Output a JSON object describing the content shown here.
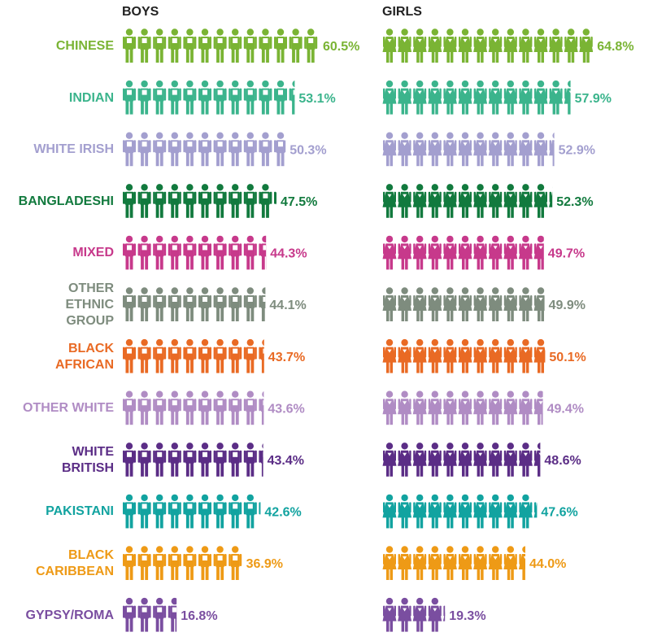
{
  "chart_data": {
    "type": "pictogram",
    "categories": [
      "CHINESE",
      "INDIAN",
      "WHITE IRISH",
      "BANGLADESHI",
      "MIXED",
      "OTHER\nETHNIC\nGROUP",
      "BLACK\nAFRICAN",
      "OTHER WHITE",
      "WHITE\nBRITISH",
      "PAKISTANI",
      "BLACK\nCARIBBEAN",
      "GYPSY/ROMA"
    ],
    "colors": [
      "#7ab434",
      "#3bb48c",
      "#a39fcf",
      "#127a3e",
      "#c7398b",
      "#7e8c7e",
      "#e96a24",
      "#b08cc4",
      "#5b2d86",
      "#12a3a0",
      "#ee9a16",
      "#7a4ea0"
    ],
    "series": [
      {
        "name": "BOYS",
        "values": [
          60.5,
          53.1,
          50.3,
          47.5,
          44.3,
          44.1,
          43.7,
          43.6,
          43.4,
          42.6,
          36.9,
          16.8
        ],
        "value_labels": [
          "60.5%",
          "53.1%",
          "50.3%",
          "47.5%",
          "44.3%",
          "44.1%",
          "43.7%",
          "43.6%",
          "43.4%",
          "42.6%",
          "36.9%",
          "16.8%"
        ]
      },
      {
        "name": "GIRLS",
        "values": [
          64.8,
          57.9,
          52.9,
          52.3,
          49.7,
          49.9,
          50.1,
          49.4,
          48.6,
          47.6,
          44.0,
          19.3
        ],
        "value_labels": [
          "64.8%",
          "57.9%",
          "52.9%",
          "52.3%",
          "49.7%",
          "49.9%",
          "50.1%",
          "49.4%",
          "48.6%",
          "47.6%",
          "44.0%",
          "19.3%"
        ]
      }
    ]
  }
}
